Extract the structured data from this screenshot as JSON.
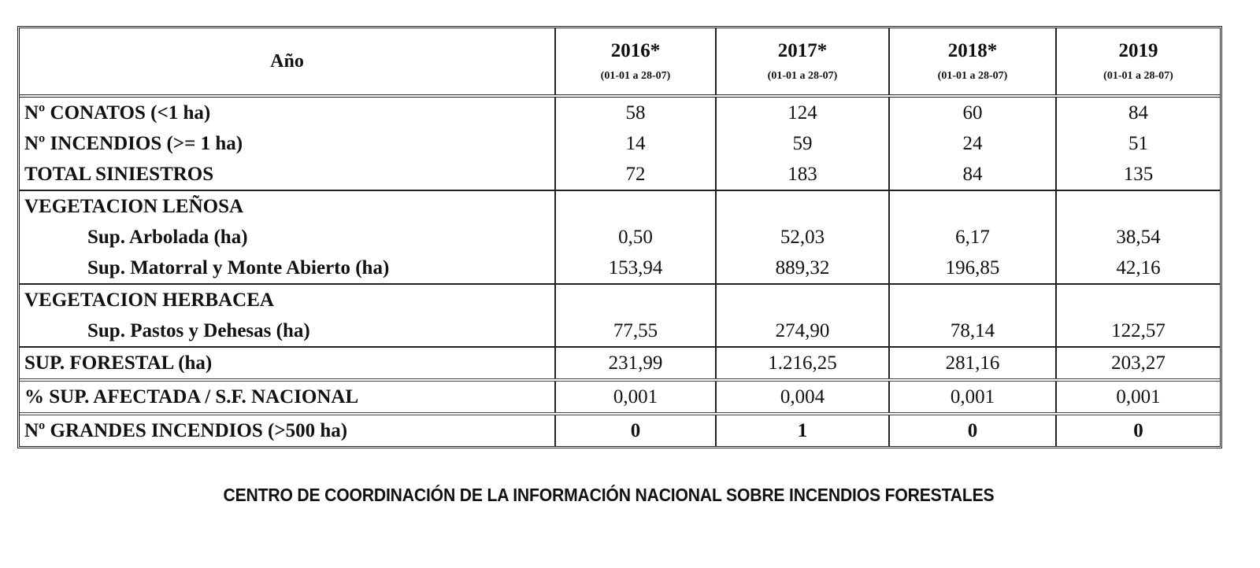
{
  "table": {
    "header": {
      "label": "Año",
      "columns": [
        {
          "year": "2016*",
          "range": "(01-01 a 28-07)"
        },
        {
          "year": "2017*",
          "range": "(01-01 a 28-07)"
        },
        {
          "year": "2018*",
          "range": "(01-01 a 28-07)"
        },
        {
          "year": "2019",
          "range": "(01-01 a 28-07)"
        }
      ]
    },
    "rows": {
      "conatos": {
        "label": "Nº CONATOS (<1 ha)",
        "values": [
          "58",
          "124",
          "60",
          "84"
        ]
      },
      "incendios": {
        "label": "Nº INCENDIOS (>= 1 ha)",
        "values": [
          "14",
          "59",
          "24",
          "51"
        ]
      },
      "total_siniestros": {
        "label": "TOTAL SINIESTROS",
        "values": [
          "72",
          "183",
          "84",
          "135"
        ]
      },
      "vegetacion_lenosa": {
        "label": "VEGETACION LEÑOSA"
      },
      "sup_arbolada": {
        "label": "Sup. Arbolada (ha)",
        "values": [
          "0,50",
          "52,03",
          "6,17",
          "38,54"
        ]
      },
      "sup_matorral": {
        "label": "Sup. Matorral y Monte Abierto (ha)",
        "values": [
          "153,94",
          "889,32",
          "196,85",
          "42,16"
        ]
      },
      "vegetacion_herbacea": {
        "label": "VEGETACION HERBACEA"
      },
      "sup_pastos": {
        "label": "Sup. Pastos y Dehesas (ha)",
        "values": [
          "77,55",
          "274,90",
          "78,14",
          "122,57"
        ]
      },
      "sup_forestal": {
        "label": "SUP. FORESTAL (ha)",
        "values": [
          "231,99",
          "1.216,25",
          "281,16",
          "203,27"
        ]
      },
      "pct_afectada": {
        "label": "% SUP. AFECTADA / S.F. NACIONAL",
        "values": [
          "0,001",
          "0,004",
          "0,001",
          "0,001"
        ]
      },
      "grandes_incendios": {
        "label": "Nº GRANDES INCENDIOS (>500 ha)",
        "values": [
          "0",
          "1",
          "0",
          "0"
        ]
      }
    }
  },
  "caption": "CENTRO DE COORDINACIÓN DE LA INFORMACIÓN NACIONAL SOBRE INCENDIOS FORESTALES"
}
